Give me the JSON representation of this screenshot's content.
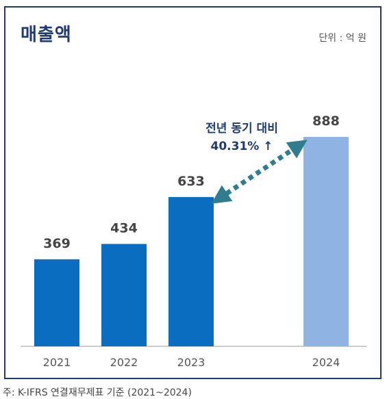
{
  "title": "매출액",
  "unit": "단위 : 억 원",
  "footnote": "주: K-IFRS 연결재무제표 기준 (2021~2024)",
  "annotation": {
    "line1": "전년 동기 대비",
    "line2": "40.31% ↑"
  },
  "colors": {
    "bar": "#0a6dbf",
    "bar_highlight": "#8fb4e3",
    "arrow": "#2f7d8f",
    "title": "#1f3a6e",
    "label": "#444444"
  },
  "chart_data": {
    "type": "bar",
    "categories": [
      "2021",
      "2022",
      "2023",
      "2024"
    ],
    "values": [
      369,
      434,
      633,
      888
    ],
    "ylim": [
      0,
      888
    ],
    "grid": false,
    "highlight_index": 3
  }
}
